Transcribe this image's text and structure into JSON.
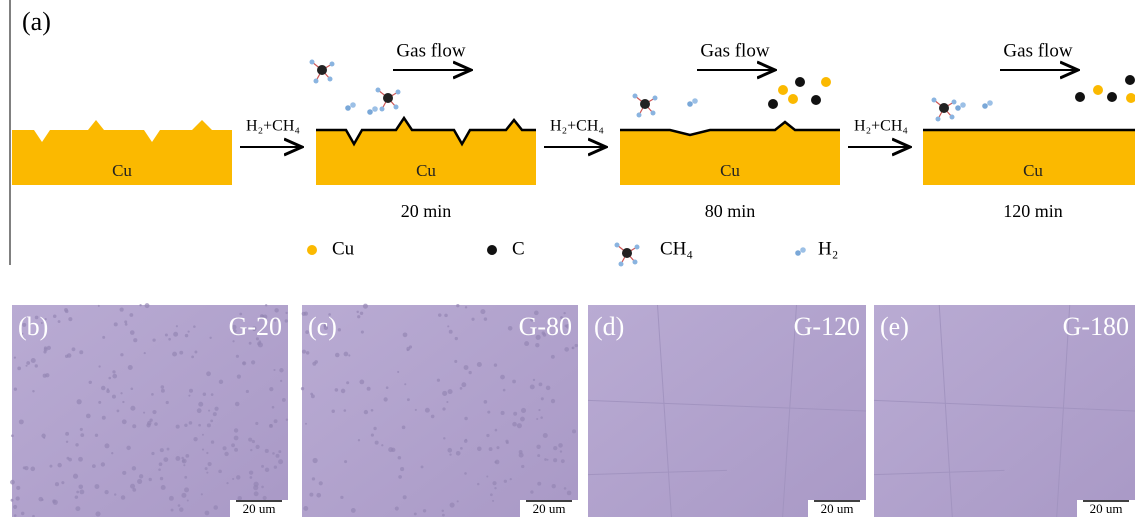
{
  "panel_a": {
    "label": "(a)",
    "stages": [
      {
        "substrate": "Cu"
      },
      {
        "substrate": "Cu",
        "gas_flow": "Gas flow",
        "time": "20 min"
      },
      {
        "substrate": "Cu",
        "gas_flow": "Gas flow",
        "time": "80 min"
      },
      {
        "substrate": "Cu",
        "gas_flow": "Gas flow",
        "time": "120 min"
      }
    ],
    "reactions": [
      "H₂+CH₄",
      "H₂+CH₄",
      "H₂+CH₄"
    ],
    "legend": [
      "Cu",
      "C",
      "CH₄",
      "H₂"
    ]
  },
  "images": [
    {
      "label": "(b)",
      "sample": "G-20",
      "scale": "20 um"
    },
    {
      "label": "(c)",
      "sample": "G-80",
      "scale": "20 um"
    },
    {
      "label": "(d)",
      "sample": "G-120",
      "scale": "20 um"
    },
    {
      "label": "(e)",
      "sample": "G-180",
      "scale": "20 um"
    }
  ]
}
